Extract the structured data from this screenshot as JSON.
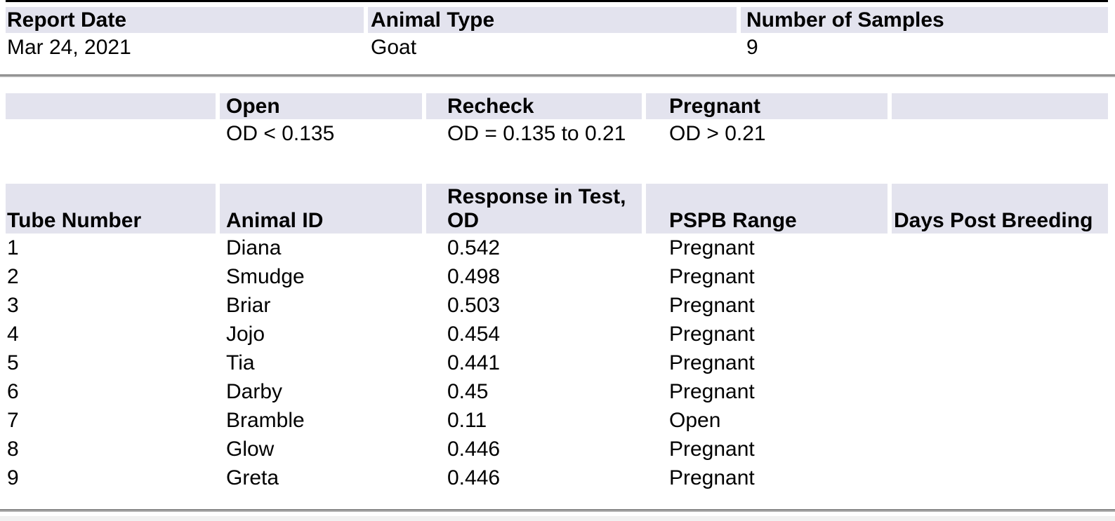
{
  "report_info": {
    "columns": [
      {
        "label": "Report Date",
        "value": "Mar 24, 2021"
      },
      {
        "label": "Animal Type",
        "value": "Goat"
      },
      {
        "label": "Number of Samples",
        "value": "9"
      }
    ]
  },
  "legend": {
    "categories": [
      {
        "label": "Open",
        "criteria": "OD < 0.135"
      },
      {
        "label": "Recheck",
        "criteria": "OD = 0.135 to 0.21"
      },
      {
        "label": "Pregnant",
        "criteria": "OD > 0.21"
      }
    ]
  },
  "results": {
    "headers": {
      "tube": "Tube Number",
      "animal": "Animal ID",
      "response": "Response in Test, OD",
      "pspb": "PSPB Range",
      "days": "Days Post Breeding"
    },
    "rows": [
      {
        "tube": "1",
        "animal_id": "Diana",
        "od": "0.542",
        "pspb_range": "Pregnant",
        "days_post_breeding": ""
      },
      {
        "tube": "2",
        "animal_id": "Smudge",
        "od": "0.498",
        "pspb_range": "Pregnant",
        "days_post_breeding": ""
      },
      {
        "tube": "3",
        "animal_id": "Briar",
        "od": "0.503",
        "pspb_range": "Pregnant",
        "days_post_breeding": ""
      },
      {
        "tube": "4",
        "animal_id": "Jojo",
        "od": "0.454",
        "pspb_range": "Pregnant",
        "days_post_breeding": ""
      },
      {
        "tube": "5",
        "animal_id": "Tia",
        "od": "0.441",
        "pspb_range": "Pregnant",
        "days_post_breeding": ""
      },
      {
        "tube": "6",
        "animal_id": "Darby",
        "od": "0.45",
        "pspb_range": "Pregnant",
        "days_post_breeding": ""
      },
      {
        "tube": "7",
        "animal_id": "Bramble",
        "od": "0.11",
        "pspb_range": "Open",
        "days_post_breeding": ""
      },
      {
        "tube": "8",
        "animal_id": "Glow",
        "od": "0.446",
        "pspb_range": "Pregnant",
        "days_post_breeding": ""
      },
      {
        "tube": "9",
        "animal_id": "Greta",
        "od": "0.446",
        "pspb_range": "Pregnant",
        "days_post_breeding": ""
      }
    ]
  },
  "colors": {
    "header_cell_bg": "#e3e3ee",
    "table_top_border": "#000000",
    "section_divider": "#8f8f8f",
    "footer_strip": "#f1f1f1"
  }
}
